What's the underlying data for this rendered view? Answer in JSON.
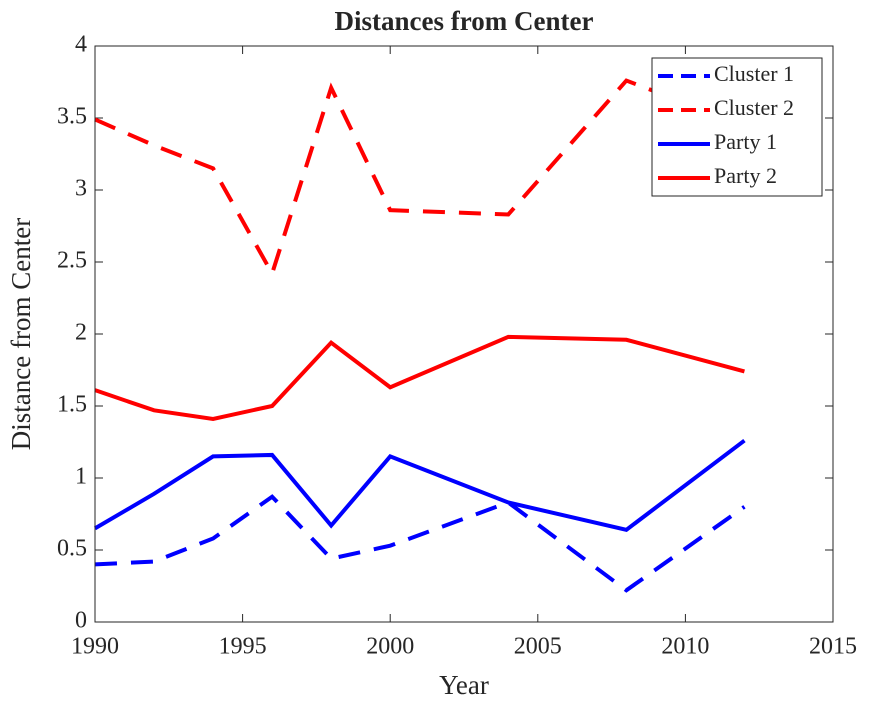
{
  "chart_data": {
    "type": "line",
    "title": "Distances from Center",
    "xlabel": "Year",
    "ylabel": "Distance from Center",
    "x": [
      1990,
      1992,
      1994,
      1996,
      1998,
      2000,
      2004,
      2008,
      2012
    ],
    "series": [
      {
        "name": "Cluster 1",
        "color": "#0000ff",
        "style": "dashed",
        "values": [
          0.4,
          0.42,
          0.58,
          0.87,
          0.44,
          0.53,
          0.83,
          0.22,
          0.8
        ]
      },
      {
        "name": "Cluster 2",
        "color": "#ff0000",
        "style": "dashed",
        "values": [
          3.49,
          3.31,
          3.15,
          2.42,
          3.71,
          2.86,
          2.83,
          3.76,
          3.45
        ]
      },
      {
        "name": "Party 1",
        "color": "#0000ff",
        "style": "solid",
        "values": [
          0.65,
          0.89,
          1.15,
          1.16,
          0.67,
          1.15,
          0.83,
          0.64,
          1.26
        ]
      },
      {
        "name": "Party 2",
        "color": "#ff0000",
        "style": "solid",
        "values": [
          1.61,
          1.47,
          1.41,
          1.5,
          1.94,
          1.63,
          1.98,
          1.96,
          1.74
        ]
      }
    ],
    "xlim": [
      1990,
      2015
    ],
    "xticks": [
      1990,
      1995,
      2000,
      2005,
      2010,
      2015
    ],
    "ylim": [
      0,
      4
    ],
    "yticks": [
      0,
      0.5,
      1,
      1.5,
      2,
      2.5,
      3,
      3.5,
      4
    ],
    "legend": "top-right"
  }
}
